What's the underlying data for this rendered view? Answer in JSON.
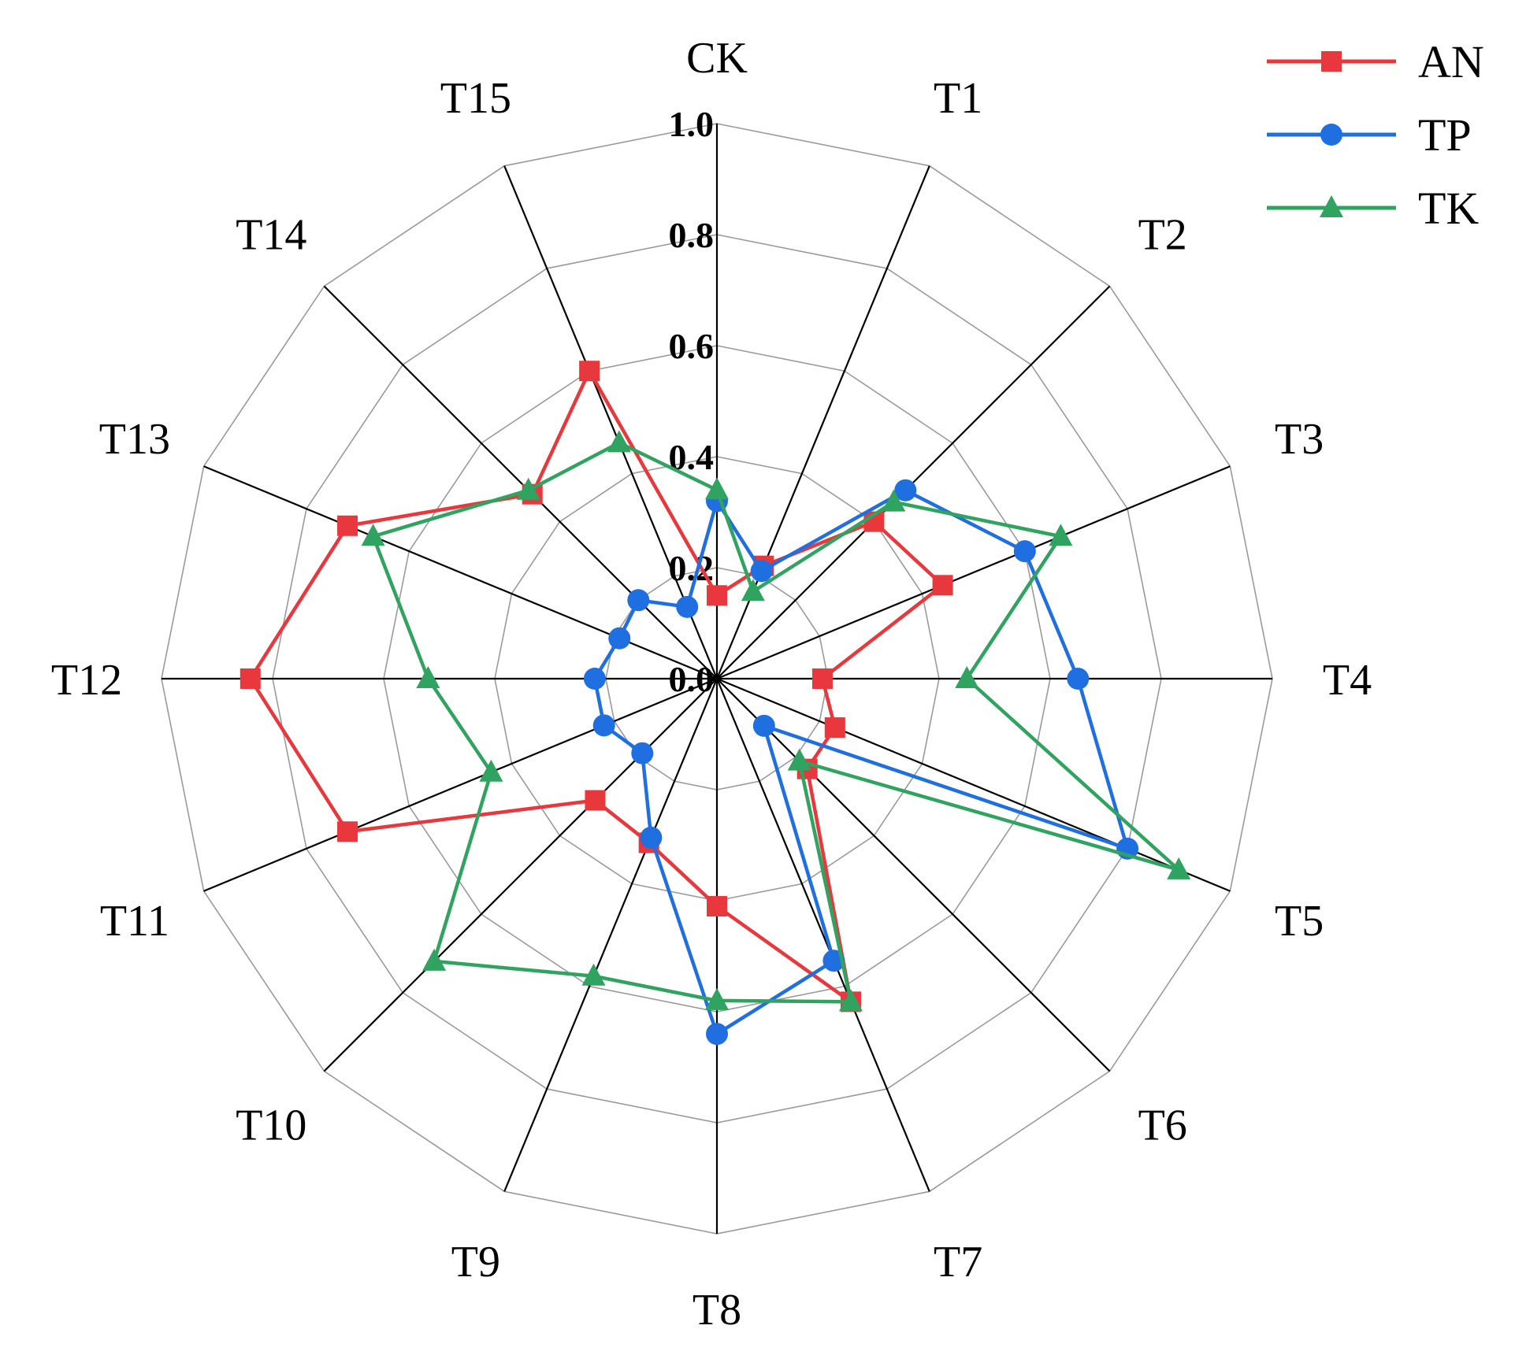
{
  "chart_data": {
    "type": "radar",
    "categories": [
      "CK",
      "T1",
      "T2",
      "T3",
      "T4",
      "T5",
      "T6",
      "T7",
      "T8",
      "T9",
      "T10",
      "T11",
      "T12",
      "T13",
      "T14",
      "T15"
    ],
    "rlim": [
      0,
      1.0
    ],
    "rticks": [
      "0.0",
      "0.2",
      "0.4",
      "0.6",
      "0.8",
      "1.0"
    ],
    "grid": true,
    "legend_position": "top-right",
    "series": [
      {
        "name": "AN",
        "color": "#e8383d",
        "marker": "square",
        "values": [
          0.15,
          0.22,
          0.4,
          0.44,
          0.19,
          0.23,
          0.23,
          0.63,
          0.41,
          0.32,
          0.31,
          0.72,
          0.84,
          0.72,
          0.47,
          0.6
        ]
      },
      {
        "name": "TP",
        "color": "#1f6fe0",
        "marker": "circle",
        "values": [
          0.32,
          0.21,
          0.48,
          0.6,
          0.65,
          0.8,
          0.12,
          0.55,
          0.64,
          0.31,
          0.19,
          0.22,
          0.22,
          0.19,
          0.2,
          0.14
        ]
      },
      {
        "name": "TK",
        "color": "#2fa35f",
        "marker": "triangle",
        "values": [
          0.34,
          0.17,
          0.45,
          0.67,
          0.45,
          0.9,
          0.21,
          0.63,
          0.58,
          0.58,
          0.72,
          0.44,
          0.52,
          0.67,
          0.48,
          0.46
        ]
      }
    ]
  }
}
